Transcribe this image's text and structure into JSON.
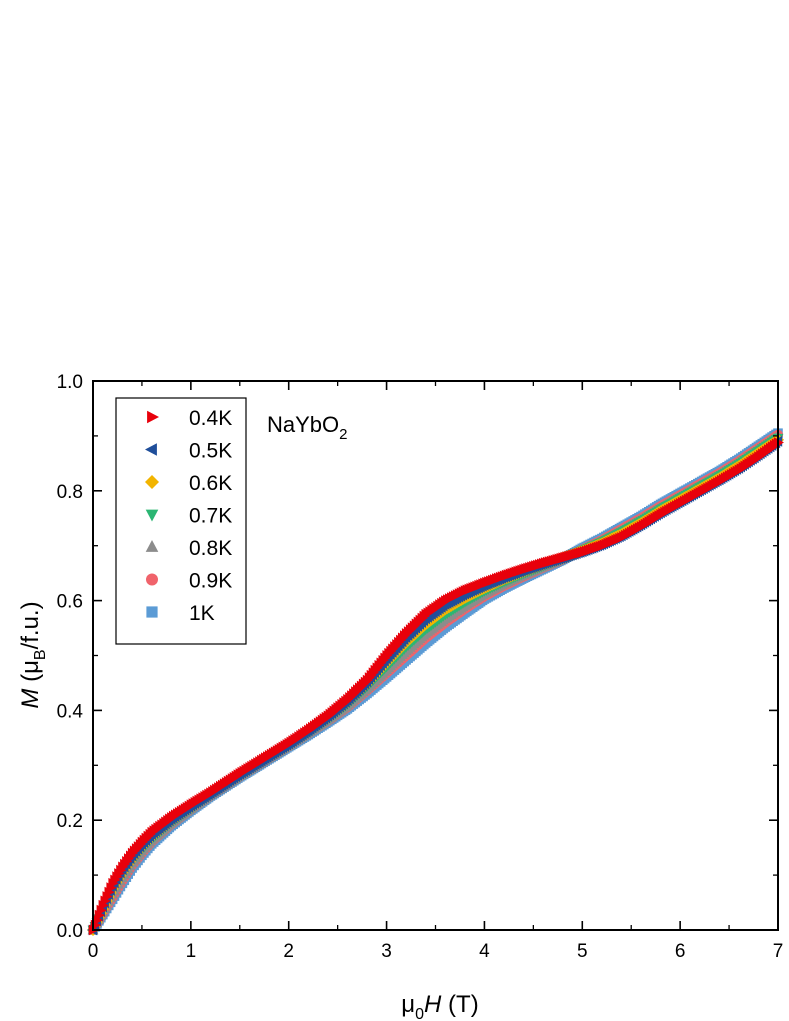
{
  "chart_data": {
    "type": "scatter",
    "title": "",
    "annotation": {
      "main": "NaYbO",
      "subscript": "2"
    },
    "xlabel": {
      "prefix": "μ",
      "sub": "0",
      "italic": "H",
      "suffix": " (T)"
    },
    "ylabel": {
      "italic": "M",
      "open": " (μ",
      "sub": "B",
      "close": "/f.u.)"
    },
    "xlim": [
      0,
      7
    ],
    "ylim": [
      0,
      1.0
    ],
    "xticks": [
      "0",
      "1",
      "2",
      "3",
      "4",
      "5",
      "6",
      "7"
    ],
    "yticks": [
      "0.0",
      "0.2",
      "0.4",
      "0.6",
      "0.8",
      "1.0"
    ],
    "grid": false,
    "legend_position": "top-left",
    "series": [
      {
        "name": "0.4K",
        "color": "#e8000b",
        "marker": "triangle-right",
        "x": [
          0,
          0.1,
          0.2,
          0.3,
          0.4,
          0.5,
          0.6,
          0.8,
          1.0,
          1.2,
          1.5,
          1.8,
          2.0,
          2.2,
          2.4,
          2.6,
          2.8,
          3.0,
          3.2,
          3.4,
          3.6,
          3.8,
          4.0,
          4.2,
          4.4,
          4.6,
          4.8,
          5.0,
          5.2,
          5.4,
          5.6,
          5.8,
          6.0,
          6.2,
          6.4,
          6.6,
          6.8,
          7.0
        ],
        "y": [
          0,
          0.045,
          0.085,
          0.115,
          0.14,
          0.16,
          0.178,
          0.205,
          0.228,
          0.25,
          0.285,
          0.318,
          0.34,
          0.364,
          0.39,
          0.42,
          0.455,
          0.5,
          0.54,
          0.575,
          0.6,
          0.618,
          0.632,
          0.645,
          0.657,
          0.668,
          0.678,
          0.688,
          0.7,
          0.715,
          0.735,
          0.757,
          0.777,
          0.797,
          0.817,
          0.838,
          0.862,
          0.888
        ]
      },
      {
        "name": "0.5K",
        "color": "#1f4e9a",
        "marker": "triangle-left",
        "x": [
          0,
          0.1,
          0.2,
          0.3,
          0.4,
          0.5,
          0.6,
          0.8,
          1.0,
          1.2,
          1.5,
          1.8,
          2.0,
          2.2,
          2.4,
          2.6,
          2.8,
          3.0,
          3.2,
          3.4,
          3.6,
          3.8,
          4.0,
          4.2,
          4.4,
          4.6,
          4.8,
          5.0,
          5.2,
          5.4,
          5.6,
          5.8,
          6.0,
          6.2,
          6.4,
          6.6,
          6.8,
          7.0
        ],
        "y": [
          0,
          0.042,
          0.08,
          0.11,
          0.135,
          0.156,
          0.174,
          0.202,
          0.226,
          0.249,
          0.284,
          0.317,
          0.339,
          0.363,
          0.389,
          0.418,
          0.452,
          0.494,
          0.533,
          0.567,
          0.593,
          0.612,
          0.628,
          0.642,
          0.655,
          0.667,
          0.678,
          0.689,
          0.702,
          0.718,
          0.738,
          0.76,
          0.78,
          0.8,
          0.82,
          0.841,
          0.865,
          0.89
        ]
      },
      {
        "name": "0.6K",
        "color": "#f2b400",
        "marker": "diamond",
        "x": [
          0,
          0.1,
          0.2,
          0.3,
          0.4,
          0.5,
          0.6,
          0.8,
          1.0,
          1.2,
          1.5,
          1.8,
          2.0,
          2.2,
          2.4,
          2.6,
          2.8,
          3.0,
          3.2,
          3.4,
          3.6,
          3.8,
          4.0,
          4.2,
          4.4,
          4.6,
          4.8,
          5.0,
          5.2,
          5.4,
          5.6,
          5.8,
          6.0,
          6.2,
          6.4,
          6.6,
          6.8,
          7.0
        ],
        "y": [
          0,
          0.038,
          0.075,
          0.105,
          0.13,
          0.152,
          0.17,
          0.199,
          0.224,
          0.248,
          0.283,
          0.316,
          0.338,
          0.362,
          0.387,
          0.415,
          0.448,
          0.487,
          0.524,
          0.557,
          0.584,
          0.605,
          0.623,
          0.639,
          0.653,
          0.666,
          0.678,
          0.69,
          0.704,
          0.721,
          0.741,
          0.763,
          0.783,
          0.803,
          0.823,
          0.845,
          0.869,
          0.893
        ]
      },
      {
        "name": "0.7K",
        "color": "#2bb673",
        "marker": "triangle-down",
        "x": [
          0,
          0.1,
          0.2,
          0.3,
          0.4,
          0.5,
          0.6,
          0.8,
          1.0,
          1.2,
          1.5,
          1.8,
          2.0,
          2.2,
          2.4,
          2.6,
          2.8,
          3.0,
          3.2,
          3.4,
          3.6,
          3.8,
          4.0,
          4.2,
          4.4,
          4.6,
          4.8,
          5.0,
          5.2,
          5.4,
          5.6,
          5.8,
          6.0,
          6.2,
          6.4,
          6.6,
          6.8,
          7.0
        ],
        "y": [
          0,
          0.035,
          0.07,
          0.1,
          0.126,
          0.148,
          0.167,
          0.197,
          0.222,
          0.247,
          0.282,
          0.315,
          0.337,
          0.36,
          0.385,
          0.412,
          0.444,
          0.48,
          0.516,
          0.548,
          0.575,
          0.598,
          0.618,
          0.635,
          0.65,
          0.664,
          0.677,
          0.691,
          0.706,
          0.724,
          0.744,
          0.766,
          0.786,
          0.806,
          0.826,
          0.848,
          0.872,
          0.896
        ]
      },
      {
        "name": "0.8K",
        "color": "#8c8c8c",
        "marker": "triangle-up",
        "x": [
          0,
          0.1,
          0.2,
          0.3,
          0.4,
          0.5,
          0.6,
          0.8,
          1.0,
          1.2,
          1.5,
          1.8,
          2.0,
          2.2,
          2.4,
          2.6,
          2.8,
          3.0,
          3.2,
          3.4,
          3.6,
          3.8,
          4.0,
          4.2,
          4.4,
          4.6,
          4.8,
          5.0,
          5.2,
          5.4,
          5.6,
          5.8,
          6.0,
          6.2,
          6.4,
          6.6,
          6.8,
          7.0
        ],
        "y": [
          0,
          0.032,
          0.065,
          0.095,
          0.122,
          0.144,
          0.164,
          0.195,
          0.221,
          0.246,
          0.281,
          0.314,
          0.336,
          0.359,
          0.383,
          0.409,
          0.44,
          0.474,
          0.508,
          0.54,
          0.567,
          0.591,
          0.613,
          0.631,
          0.647,
          0.662,
          0.676,
          0.692,
          0.708,
          0.727,
          0.747,
          0.769,
          0.789,
          0.809,
          0.829,
          0.851,
          0.875,
          0.899
        ]
      },
      {
        "name": "0.9K",
        "color": "#f0636b",
        "marker": "circle",
        "x": [
          0,
          0.1,
          0.2,
          0.3,
          0.4,
          0.5,
          0.6,
          0.8,
          1.0,
          1.2,
          1.5,
          1.8,
          2.0,
          2.2,
          2.4,
          2.6,
          2.8,
          3.0,
          3.2,
          3.4,
          3.6,
          3.8,
          4.0,
          4.2,
          4.4,
          4.6,
          4.8,
          5.0,
          5.2,
          5.4,
          5.6,
          5.8,
          6.0,
          6.2,
          6.4,
          6.6,
          6.8,
          7.0
        ],
        "y": [
          0,
          0.03,
          0.06,
          0.09,
          0.118,
          0.14,
          0.161,
          0.193,
          0.22,
          0.245,
          0.28,
          0.313,
          0.335,
          0.358,
          0.381,
          0.406,
          0.436,
          0.468,
          0.5,
          0.532,
          0.56,
          0.585,
          0.608,
          0.627,
          0.644,
          0.66,
          0.675,
          0.693,
          0.71,
          0.73,
          0.75,
          0.772,
          0.792,
          0.812,
          0.832,
          0.854,
          0.878,
          0.902
        ]
      },
      {
        "name": "1K",
        "color": "#5b9bd5",
        "marker": "square",
        "x": [
          0,
          0.1,
          0.2,
          0.3,
          0.4,
          0.5,
          0.6,
          0.8,
          1.0,
          1.2,
          1.5,
          1.8,
          2.0,
          2.2,
          2.4,
          2.6,
          2.8,
          3.0,
          3.2,
          3.4,
          3.6,
          3.8,
          4.0,
          4.2,
          4.4,
          4.6,
          4.8,
          5.0,
          5.2,
          5.4,
          5.6,
          5.8,
          6.0,
          6.2,
          6.4,
          6.6,
          6.8,
          7.0
        ],
        "y": [
          0,
          0.028,
          0.056,
          0.085,
          0.113,
          0.136,
          0.157,
          0.19,
          0.218,
          0.244,
          0.279,
          0.312,
          0.334,
          0.356,
          0.379,
          0.403,
          0.431,
          0.461,
          0.492,
          0.523,
          0.552,
          0.578,
          0.603,
          0.623,
          0.641,
          0.658,
          0.675,
          0.695,
          0.713,
          0.733,
          0.753,
          0.775,
          0.795,
          0.815,
          0.835,
          0.857,
          0.881,
          0.905
        ]
      }
    ]
  }
}
